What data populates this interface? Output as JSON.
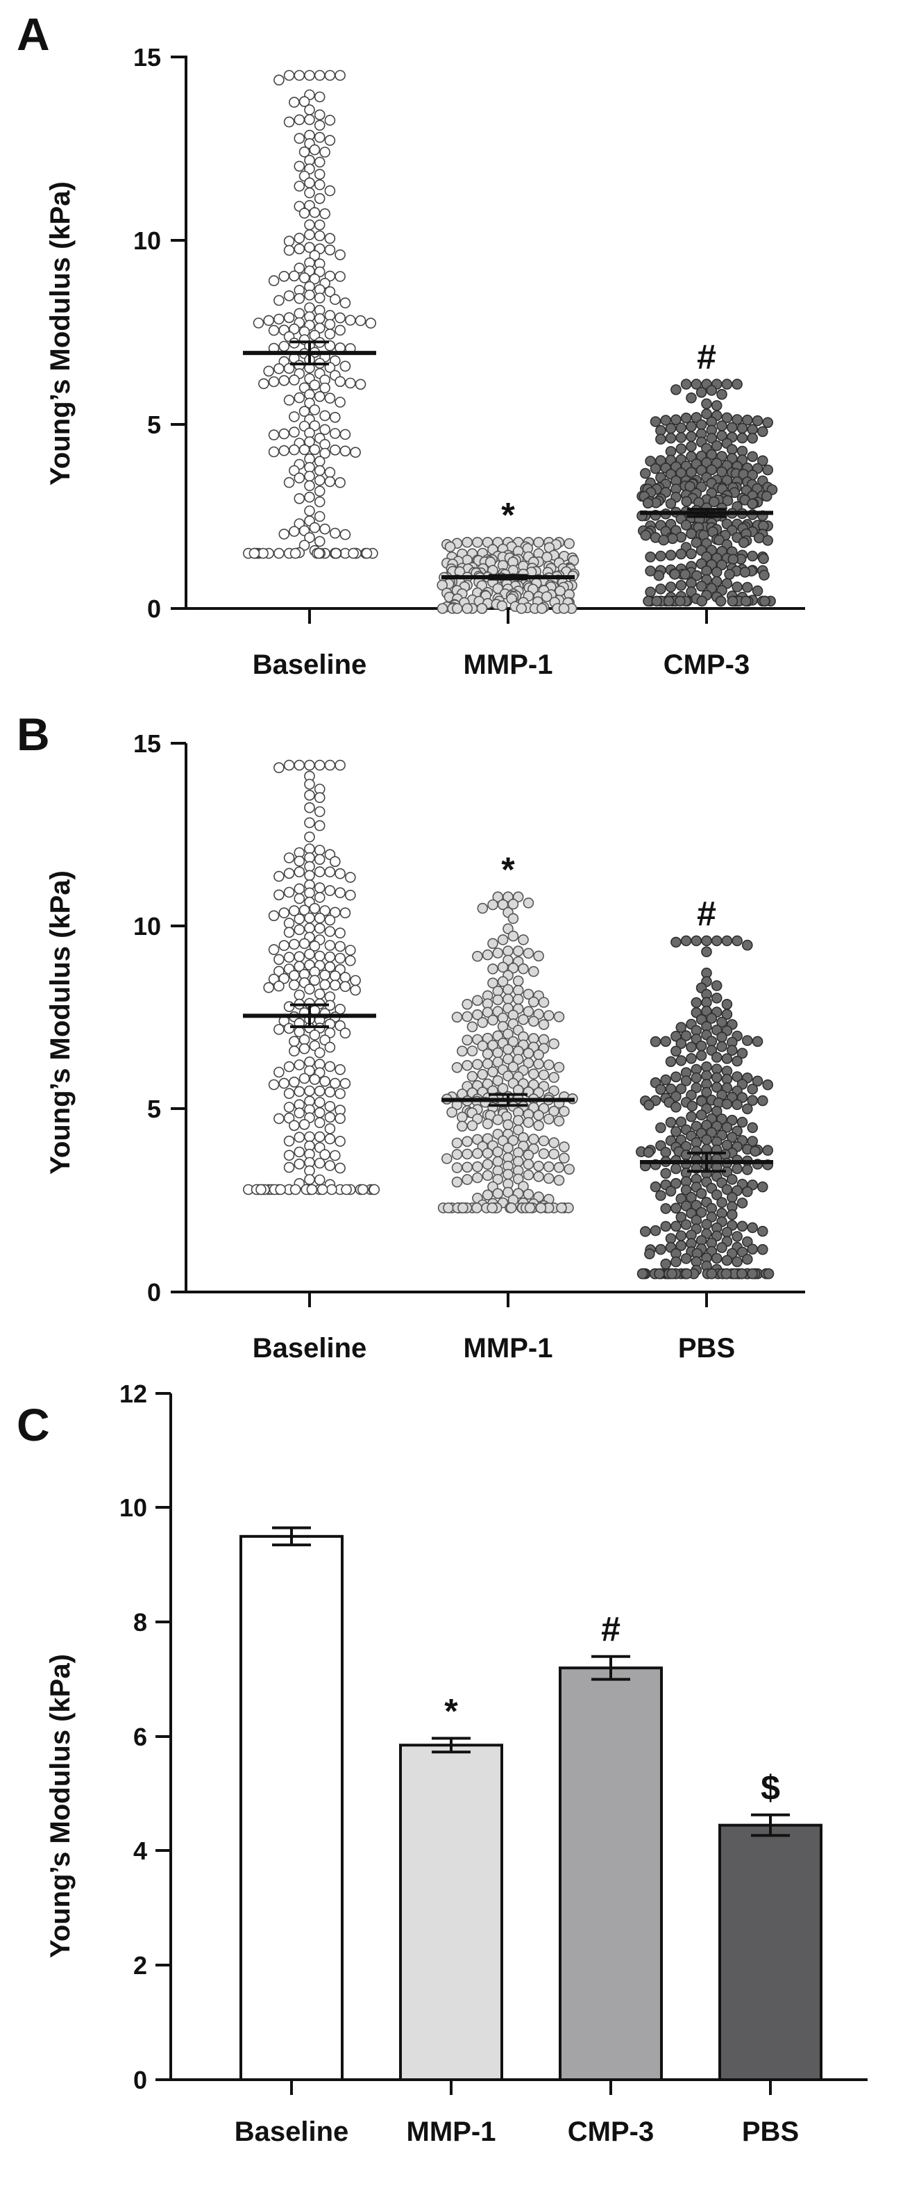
{
  "chart_data": [
    {
      "panel": "A",
      "type": "scatter",
      "style": "beeswarm with mean ± SEM",
      "ylabel": "Young’s Modulus (kPa)",
      "ylim": [
        0,
        15
      ],
      "yticks": [
        0,
        5,
        10,
        15
      ],
      "categories": [
        "Baseline",
        "MMP-1",
        "CMP-3"
      ],
      "groups": [
        {
          "name": "Baseline",
          "mean": 6.95,
          "sem": 0.3,
          "min": 1.5,
          "max": 14.5,
          "n": 240,
          "fill": "#ffffff",
          "stroke": "#444444",
          "annotation": ""
        },
        {
          "name": "MMP-1",
          "mean": 0.85,
          "sem": 0.05,
          "min": 0.0,
          "max": 1.8,
          "n": 190,
          "fill": "#d9d9d9",
          "stroke": "#555555",
          "annotation": "*"
        },
        {
          "name": "CMP-3",
          "mean": 2.6,
          "sem": 0.1,
          "min": 0.2,
          "max": 6.1,
          "n": 320,
          "fill": "#6a6a6a",
          "stroke": "#2e2e2e",
          "annotation": "#"
        }
      ]
    },
    {
      "panel": "B",
      "type": "scatter",
      "style": "beeswarm with mean ± SEM",
      "ylabel": "Young’s Modulus (kPa)",
      "ylim": [
        0,
        15
      ],
      "yticks": [
        0,
        5,
        10,
        15
      ],
      "categories": [
        "Baseline",
        "MMP-1",
        "PBS"
      ],
      "groups": [
        {
          "name": "Baseline",
          "mean": 7.55,
          "sem": 0.3,
          "min": 2.8,
          "max": 14.4,
          "n": 240,
          "fill": "#ffffff",
          "stroke": "#444444",
          "annotation": ""
        },
        {
          "name": "MMP-1",
          "mean": 5.25,
          "sem": 0.15,
          "min": 2.3,
          "max": 10.8,
          "n": 290,
          "fill": "#d9d9d9",
          "stroke": "#555555",
          "annotation": "*"
        },
        {
          "name": "PBS",
          "mean": 3.55,
          "sem": 0.25,
          "min": 0.5,
          "max": 9.6,
          "n": 320,
          "fill": "#6a6a6a",
          "stroke": "#2e2e2e",
          "annotation": "#"
        }
      ]
    },
    {
      "panel": "C",
      "type": "bar",
      "ylabel": "Young’s Modulus (kPa)",
      "ylim": [
        0,
        12
      ],
      "yticks": [
        0,
        2,
        4,
        6,
        8,
        10,
        12
      ],
      "categories": [
        "Baseline",
        "MMP-1",
        "CMP-3",
        "PBS"
      ],
      "values": [
        9.5,
        5.85,
        7.2,
        4.45
      ],
      "errors": [
        0.15,
        0.12,
        0.2,
        0.18
      ],
      "colors": [
        "#ffffff",
        "#dddddd",
        "#a4a4a6",
        "#5c5c5e"
      ],
      "annotations": [
        "",
        "*",
        "#",
        "$"
      ]
    }
  ]
}
